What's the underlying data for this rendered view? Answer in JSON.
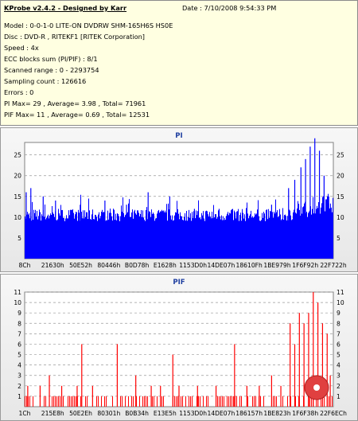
{
  "info": {
    "title": "KProbe v2.4.2 - Designed by Karr",
    "date": "Date : 7/10/2008 9:54:33 PM",
    "lines": [
      "Model : 0-0-1-0 LITE-ON DVDRW SHM-165H6S HS0E",
      "Disc : DVD-R , RITEKF1 [RITEK Corporation]",
      "Speed : 4x",
      "ECC blocks sum (PI/PIF) : 8/1",
      "Scanned range : 0 - 2293754",
      "Sampling count : 126616",
      "Errors : 0",
      "PI Max= 29 , Average= 3.98 , Total= 71961",
      "PIF Max= 11 , Average= 0.69 , Total= 12531"
    ]
  },
  "colors": {
    "pi": "#0000ff",
    "pif": "#ff0000",
    "plot_bg": "#ffffff",
    "grid": "#9a9a9a"
  },
  "chart_data": [
    {
      "type": "bar",
      "title": "PI",
      "ylim": [
        0,
        28
      ],
      "yticks": [
        "5",
        "10",
        "15",
        "20",
        "25"
      ],
      "xtick_labels": [
        "8Ch",
        "21630h",
        "50E52h",
        "80446h",
        "B0D78h",
        "E1628h",
        "1153D0h",
        "14DE07h",
        "18610Fh",
        "1BE979h",
        "1F6F92h",
        "22F722h"
      ],
      "grid": true,
      "baseline_range": [
        9,
        12
      ],
      "spikes": [
        {
          "x": 0.005,
          "y": 16
        },
        {
          "x": 0.02,
          "y": 17
        },
        {
          "x": 0.06,
          "y": 15
        },
        {
          "x": 0.1,
          "y": 14
        },
        {
          "x": 0.18,
          "y": 13
        },
        {
          "x": 0.26,
          "y": 14
        },
        {
          "x": 0.33,
          "y": 13
        },
        {
          "x": 0.4,
          "y": 16
        },
        {
          "x": 0.47,
          "y": 15
        },
        {
          "x": 0.55,
          "y": 12
        },
        {
          "x": 0.63,
          "y": 12
        },
        {
          "x": 0.72,
          "y": 12
        },
        {
          "x": 0.8,
          "y": 13
        },
        {
          "x": 0.855,
          "y": 17
        },
        {
          "x": 0.875,
          "y": 19
        },
        {
          "x": 0.895,
          "y": 22
        },
        {
          "x": 0.91,
          "y": 24
        },
        {
          "x": 0.925,
          "y": 27
        },
        {
          "x": 0.94,
          "y": 29
        },
        {
          "x": 0.955,
          "y": 26
        },
        {
          "x": 0.97,
          "y": 20
        },
        {
          "x": 0.985,
          "y": 15
        }
      ]
    },
    {
      "type": "bar",
      "title": "PIF",
      "ylim": [
        0,
        11
      ],
      "yticks": [
        "1",
        "2",
        "3",
        "4",
        "5",
        "6",
        "7",
        "8",
        "9",
        "10",
        "11"
      ],
      "xtick_labels": [
        "1Ch",
        "215E8h",
        "50E2Eh",
        "80301h",
        "B0B34h",
        "E13E5h",
        "1153D0h",
        "14DE07h",
        "186157h",
        "1BE823h",
        "1F6F38h",
        "22F6ECh"
      ],
      "grid": true,
      "spikes": [
        {
          "x": 0.01,
          "y": 2
        },
        {
          "x": 0.05,
          "y": 2
        },
        {
          "x": 0.08,
          "y": 3
        },
        {
          "x": 0.12,
          "y": 2
        },
        {
          "x": 0.17,
          "y": 2
        },
        {
          "x": 0.185,
          "y": 6
        },
        {
          "x": 0.22,
          "y": 2
        },
        {
          "x": 0.3,
          "y": 6
        },
        {
          "x": 0.36,
          "y": 3
        },
        {
          "x": 0.41,
          "y": 2
        },
        {
          "x": 0.44,
          "y": 2
        },
        {
          "x": 0.48,
          "y": 5
        },
        {
          "x": 0.5,
          "y": 2
        },
        {
          "x": 0.56,
          "y": 2
        },
        {
          "x": 0.62,
          "y": 2
        },
        {
          "x": 0.68,
          "y": 6
        },
        {
          "x": 0.72,
          "y": 2
        },
        {
          "x": 0.76,
          "y": 2
        },
        {
          "x": 0.8,
          "y": 3
        },
        {
          "x": 0.83,
          "y": 2
        },
        {
          "x": 0.86,
          "y": 8
        },
        {
          "x": 0.875,
          "y": 6
        },
        {
          "x": 0.89,
          "y": 9
        },
        {
          "x": 0.905,
          "y": 8
        },
        {
          "x": 0.92,
          "y": 9
        },
        {
          "x": 0.935,
          "y": 11
        },
        {
          "x": 0.95,
          "y": 10
        },
        {
          "x": 0.965,
          "y": 8
        },
        {
          "x": 0.98,
          "y": 7
        },
        {
          "x": 0.99,
          "y": 3
        }
      ]
    }
  ]
}
